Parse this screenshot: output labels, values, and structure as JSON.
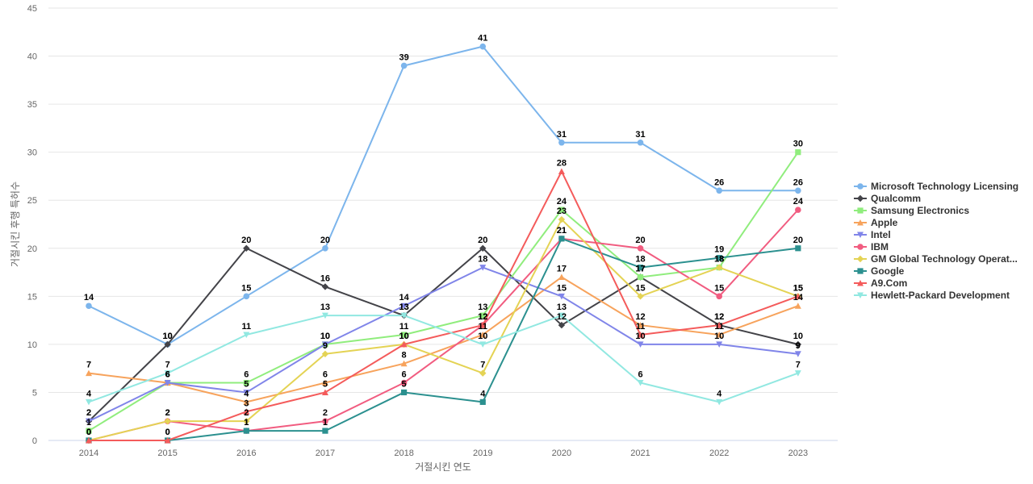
{
  "chart_data": {
    "type": "line",
    "xlabel": "거절시킨 연도",
    "ylabel": "거절시킨 후행 특허수",
    "ylim": [
      0,
      45
    ],
    "yticks": [
      0,
      5,
      10,
      15,
      20,
      25,
      30,
      35,
      40,
      45
    ],
    "categories": [
      "2014",
      "2015",
      "2016",
      "2017",
      "2018",
      "2019",
      "2020",
      "2021",
      "2022",
      "2023"
    ],
    "grid": true,
    "legend_position": "right",
    "series": [
      {
        "name": "Microsoft Technology Licensing",
        "color": "#7cb5ec",
        "marker": "circle",
        "values": [
          14,
          10,
          15,
          20,
          39,
          41,
          31,
          31,
          26,
          26
        ]
      },
      {
        "name": "Qualcomm",
        "color": "#434348",
        "marker": "diamond",
        "values": [
          2,
          10,
          20,
          16,
          13,
          20,
          12,
          17,
          12,
          10
        ]
      },
      {
        "name": "Samsung Electronics",
        "color": "#90ed7d",
        "marker": "square",
        "values": [
          1,
          6,
          6,
          10,
          11,
          13,
          24,
          17,
          18,
          30
        ]
      },
      {
        "name": "Apple",
        "color": "#f7a35c",
        "marker": "triangle",
        "values": [
          7,
          6,
          4,
          6,
          8,
          11,
          17,
          12,
          11,
          14
        ]
      },
      {
        "name": "Intel",
        "color": "#8085e9",
        "marker": "triangle-down",
        "values": [
          2,
          6,
          5,
          10,
          14,
          18,
          15,
          10,
          10,
          9
        ]
      },
      {
        "name": "IBM",
        "color": "#f15c80",
        "marker": "circle",
        "values": [
          0,
          2,
          1,
          2,
          6,
          12,
          21,
          20,
          15,
          24
        ]
      },
      {
        "name": "GM Global Technology Operat...",
        "color": "#e4d354",
        "marker": "diamond",
        "values": [
          0,
          2,
          2,
          9,
          10,
          7,
          23,
          15,
          18,
          15
        ]
      },
      {
        "name": "Google",
        "color": "#2b908f",
        "marker": "square",
        "values": [
          0,
          0,
          1,
          1,
          5,
          4,
          21,
          18,
          19,
          20
        ]
      },
      {
        "name": "A9.Com",
        "color": "#f45b5b",
        "marker": "triangle",
        "values": [
          0,
          0,
          3,
          5,
          10,
          12,
          28,
          11,
          12,
          15
        ]
      },
      {
        "name": "Hewlett-Packard Development",
        "color": "#91e8e1",
        "marker": "triangle-down",
        "values": [
          4,
          7,
          11,
          13,
          13,
          10,
          13,
          6,
          4,
          7
        ]
      }
    ]
  }
}
